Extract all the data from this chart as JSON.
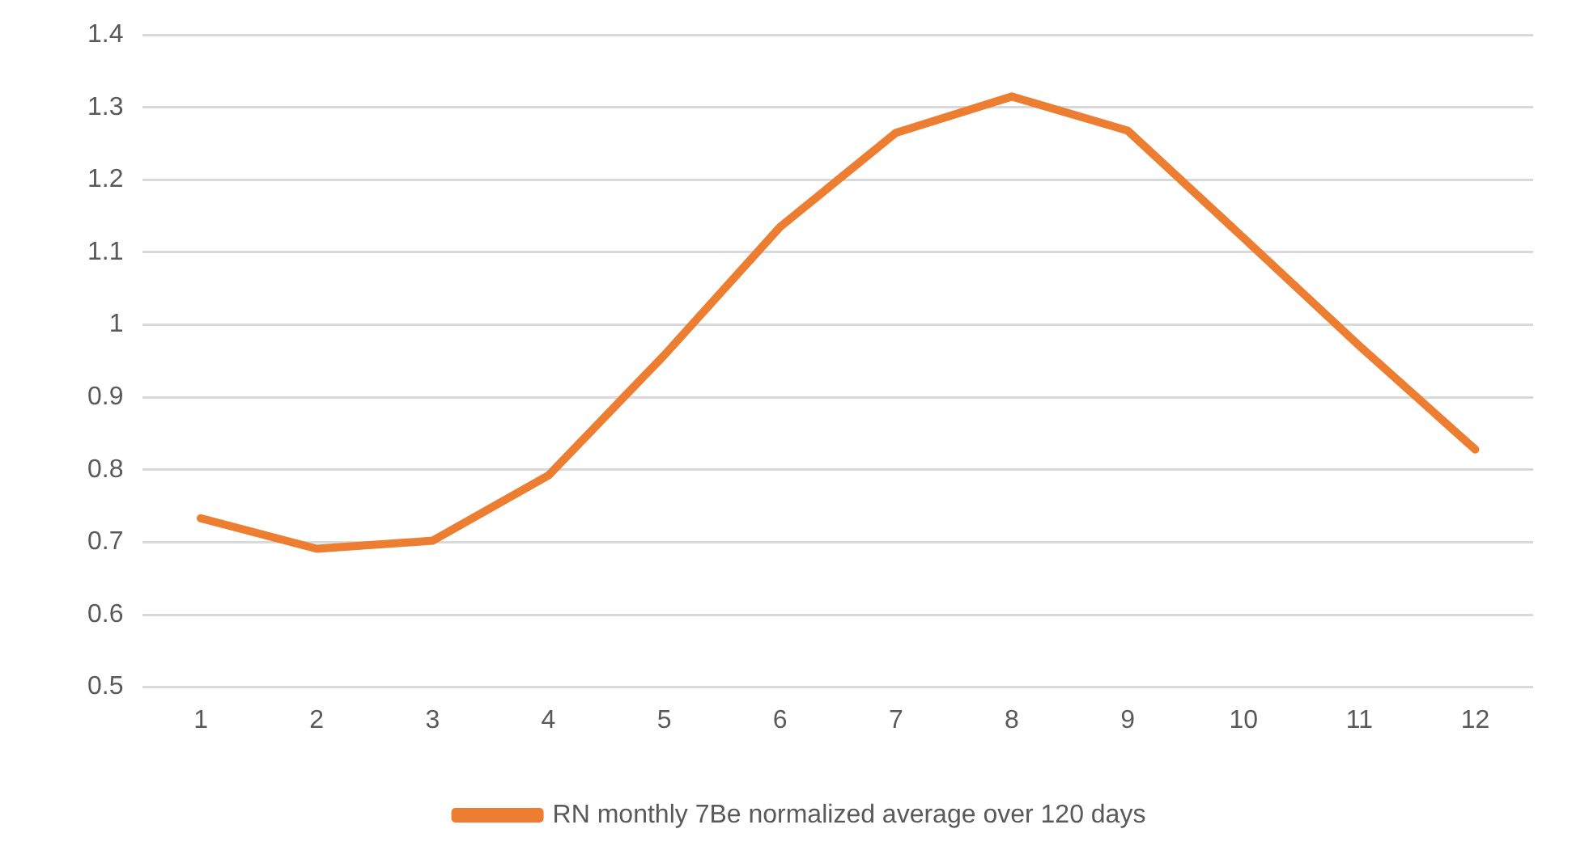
{
  "chart_data": {
    "type": "line",
    "categories": [
      "1",
      "2",
      "3",
      "4",
      "5",
      "6",
      "7",
      "8",
      "9",
      "10",
      "11",
      "12"
    ],
    "series": [
      {
        "name": "RN monthly 7Be normalized average over 120 days",
        "color": "#ed7d31",
        "values": [
          0.733,
          0.691,
          0.702,
          0.792,
          0.958,
          1.135,
          1.265,
          1.315,
          1.268,
          1.12,
          0.971,
          0.828
        ]
      }
    ],
    "ylim": [
      0.5,
      1.4
    ],
    "yticks": [
      0.5,
      0.6,
      0.7,
      0.8,
      0.9,
      1,
      1.1,
      1.2,
      1.3,
      1.4
    ],
    "grid": "y",
    "legend": "bottom",
    "marker": "none",
    "line_style": "solid"
  }
}
